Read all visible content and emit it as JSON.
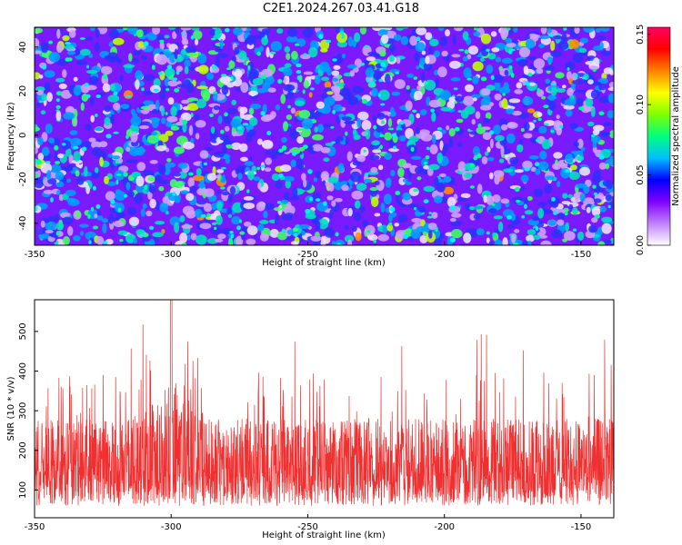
{
  "page_title": "C2E1.2024.267.03.41.G18",
  "chart_data": [
    {
      "type": "heatmap",
      "title": "C2E1.2024.267.03.41.G18",
      "xlabel": "Height of straight line (km)",
      "ylabel": "Frequency (Hz)",
      "xlim": [
        -350,
        -138
      ],
      "ylim": [
        -50,
        49
      ],
      "x_ticks": [
        -350,
        -300,
        -250,
        -200,
        -150
      ],
      "y_ticks": [
        -40,
        -20,
        0,
        20,
        40
      ],
      "colorbar": {
        "label": "Normalized spectral amplitude",
        "range": [
          0.0,
          0.155
        ],
        "ticks": [
          "0.00",
          "0.05",
          "0.10",
          "0.15"
        ],
        "colors": [
          "#ffffff",
          "#c080ff",
          "#8000ff",
          "#0000ff",
          "#00c0ff",
          "#00ff80",
          "#80ff00",
          "#ffff00",
          "#ff8000",
          "#ff0000",
          "#ff0060"
        ]
      },
      "background_color": "#7a1aff",
      "content_note": "dense noise field of spectral blobs; no discrete labeled values"
    },
    {
      "type": "line",
      "xlabel": "Height of straight line (km)",
      "ylabel": "SNR (10 * v/v)",
      "xlim": [
        -350,
        -138
      ],
      "ylim": [
        30,
        580
      ],
      "x_ticks": [
        -350,
        -300,
        -250,
        -200,
        -150
      ],
      "y_ticks": [
        100,
        200,
        300,
        400,
        500
      ],
      "series_color": "#f03030",
      "noise_band": {
        "baseline_low": 60,
        "baseline_high": 280,
        "typical_peaks": 400,
        "max_peak": 580,
        "max_peak_x": -300
      }
    }
  ]
}
